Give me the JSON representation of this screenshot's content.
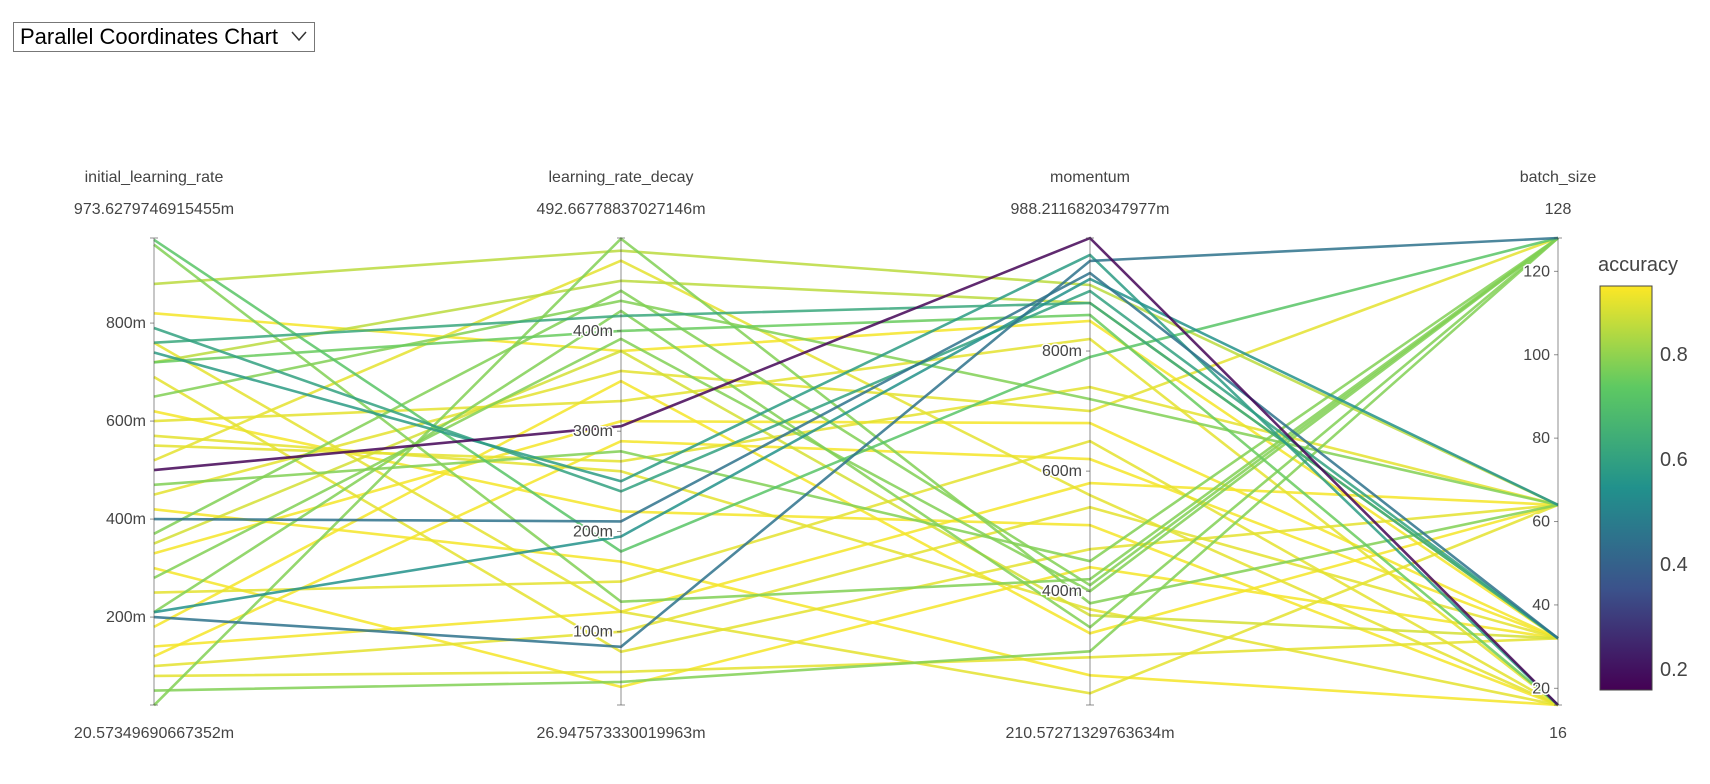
{
  "selector": {
    "label": "Parallel Coordinates Chart",
    "icon": "chevron-down-icon"
  },
  "chart_data": {
    "type": "parallel-coordinates",
    "color_dimension": "accuracy",
    "colorscale": "viridis",
    "dimensions": [
      {
        "name": "initial_learning_rate",
        "range_max_label": "973.6279746915455m",
        "range_min_label": "20.57349690667352m",
        "min": 0.02057349690667352,
        "max": 0.9736279746915455,
        "ticks": [
          {
            "value": 0.2,
            "label": "200m"
          },
          {
            "value": 0.4,
            "label": "400m"
          },
          {
            "value": 0.6,
            "label": "600m"
          },
          {
            "value": 0.8,
            "label": "800m"
          }
        ]
      },
      {
        "name": "learning_rate_decay",
        "range_max_label": "492.66778837027146m",
        "range_min_label": "26.947573330019963m",
        "min": 0.02694757333001996,
        "max": 0.4926677883702715,
        "ticks": [
          {
            "value": 0.1,
            "label": "100m"
          },
          {
            "value": 0.2,
            "label": "200m"
          },
          {
            "value": 0.3,
            "label": "300m"
          },
          {
            "value": 0.4,
            "label": "400m"
          }
        ]
      },
      {
        "name": "momentum",
        "range_max_label": "988.2116820347977m",
        "range_min_label": "210.57271329763634m",
        "min": 0.21057271329763633,
        "max": 0.9882116820347977,
        "ticks": [
          {
            "value": 0.4,
            "label": "400m"
          },
          {
            "value": 0.6,
            "label": "600m"
          },
          {
            "value": 0.8,
            "label": "800m"
          }
        ]
      },
      {
        "name": "batch_size",
        "range_max_label": "128",
        "range_min_label": "16",
        "min": 16,
        "max": 128,
        "ticks": [
          {
            "value": 20,
            "label": "20"
          },
          {
            "value": 40,
            "label": "40"
          },
          {
            "value": 60,
            "label": "60"
          },
          {
            "value": 80,
            "label": "80"
          },
          {
            "value": 100,
            "label": "100"
          },
          {
            "value": 120,
            "label": "120"
          }
        ]
      }
    ],
    "colorbar": {
      "title": "accuracy",
      "min": 0.16,
      "max": 0.93,
      "ticks": [
        {
          "value": 0.2,
          "label": "0.2"
        },
        {
          "value": 0.4,
          "label": "0.4"
        },
        {
          "value": 0.6,
          "label": "0.6"
        },
        {
          "value": 0.8,
          "label": "0.8"
        }
      ]
    },
    "lines": [
      {
        "values": [
          0.5,
          0.305,
          0.988,
          16
        ],
        "accuracy": 0.17
      },
      {
        "values": [
          0.2,
          0.085,
          0.95,
          128
        ],
        "accuracy": 0.45
      },
      {
        "values": [
          0.4,
          0.21,
          0.93,
          32
        ],
        "accuracy": 0.45
      },
      {
        "values": [
          0.21,
          0.195,
          0.92,
          64
        ],
        "accuracy": 0.55
      },
      {
        "values": [
          0.79,
          0.24,
          0.9,
          32
        ],
        "accuracy": 0.6
      },
      {
        "values": [
          0.76,
          0.415,
          0.88,
          32
        ],
        "accuracy": 0.62
      },
      {
        "values": [
          0.74,
          0.25,
          0.96,
          16
        ],
        "accuracy": 0.58
      },
      {
        "values": [
          0.97,
          0.18,
          0.79,
          128
        ],
        "accuracy": 0.72
      },
      {
        "values": [
          0.72,
          0.4,
          0.86,
          16
        ],
        "accuracy": 0.75
      },
      {
        "values": [
          0.65,
          0.43,
          0.72,
          64
        ],
        "accuracy": 0.78
      },
      {
        "values": [
          0.47,
          0.28,
          0.45,
          128
        ],
        "accuracy": 0.78
      },
      {
        "values": [
          0.37,
          0.44,
          0.41,
          128
        ],
        "accuracy": 0.78
      },
      {
        "values": [
          0.28,
          0.392,
          0.4,
          128
        ],
        "accuracy": 0.78
      },
      {
        "values": [
          0.96,
          0.13,
          0.42,
          128
        ],
        "accuracy": 0.78
      },
      {
        "values": [
          0.02,
          0.492,
          0.38,
          64
        ],
        "accuracy": 0.78
      },
      {
        "values": [
          0.21,
          0.42,
          0.34,
          128
        ],
        "accuracy": 0.78
      },
      {
        "values": [
          0.05,
          0.05,
          0.3,
          128
        ],
        "accuracy": 0.78
      },
      {
        "values": [
          0.72,
          0.45,
          0.88,
          32
        ],
        "accuracy": 0.85
      },
      {
        "values": [
          0.88,
          0.48,
          0.91,
          64
        ],
        "accuracy": 0.85
      },
      {
        "values": [
          0.6,
          0.33,
          0.82,
          16
        ],
        "accuracy": 0.9
      },
      {
        "values": [
          0.82,
          0.38,
          0.85,
          32
        ],
        "accuracy": 0.92
      },
      {
        "values": [
          0.55,
          0.27,
          0.74,
          64
        ],
        "accuracy": 0.9
      },
      {
        "values": [
          0.45,
          0.36,
          0.7,
          128
        ],
        "accuracy": 0.9
      },
      {
        "values": [
          0.33,
          0.31,
          0.68,
          32
        ],
        "accuracy": 0.92
      },
      {
        "values": [
          0.25,
          0.15,
          0.65,
          16
        ],
        "accuracy": 0.9
      },
      {
        "values": [
          0.14,
          0.12,
          0.58,
          64
        ],
        "accuracy": 0.92
      },
      {
        "values": [
          0.1,
          0.1,
          0.54,
          32
        ],
        "accuracy": 0.9
      },
      {
        "values": [
          0.62,
          0.22,
          0.51,
          16
        ],
        "accuracy": 0.92
      },
      {
        "values": [
          0.69,
          0.08,
          0.47,
          64
        ],
        "accuracy": 0.9
      },
      {
        "values": [
          0.3,
          0.045,
          0.44,
          32
        ],
        "accuracy": 0.92
      },
      {
        "values": [
          0.57,
          0.26,
          0.37,
          16
        ],
        "accuracy": 0.9
      },
      {
        "values": [
          0.18,
          0.35,
          0.33,
          64
        ],
        "accuracy": 0.92
      },
      {
        "values": [
          0.08,
          0.06,
          0.29,
          32
        ],
        "accuracy": 0.9
      },
      {
        "values": [
          0.42,
          0.17,
          0.26,
          16
        ],
        "accuracy": 0.92
      },
      {
        "values": [
          0.76,
          0.12,
          0.23,
          64
        ],
        "accuracy": 0.9
      },
      {
        "values": [
          0.12,
          0.29,
          0.62,
          32
        ],
        "accuracy": 0.92
      },
      {
        "values": [
          0.52,
          0.47,
          0.56,
          16
        ],
        "accuracy": 0.9
      },
      {
        "values": [
          0.35,
          0.38,
          0.36,
          32
        ],
        "accuracy": 0.88
      }
    ]
  }
}
